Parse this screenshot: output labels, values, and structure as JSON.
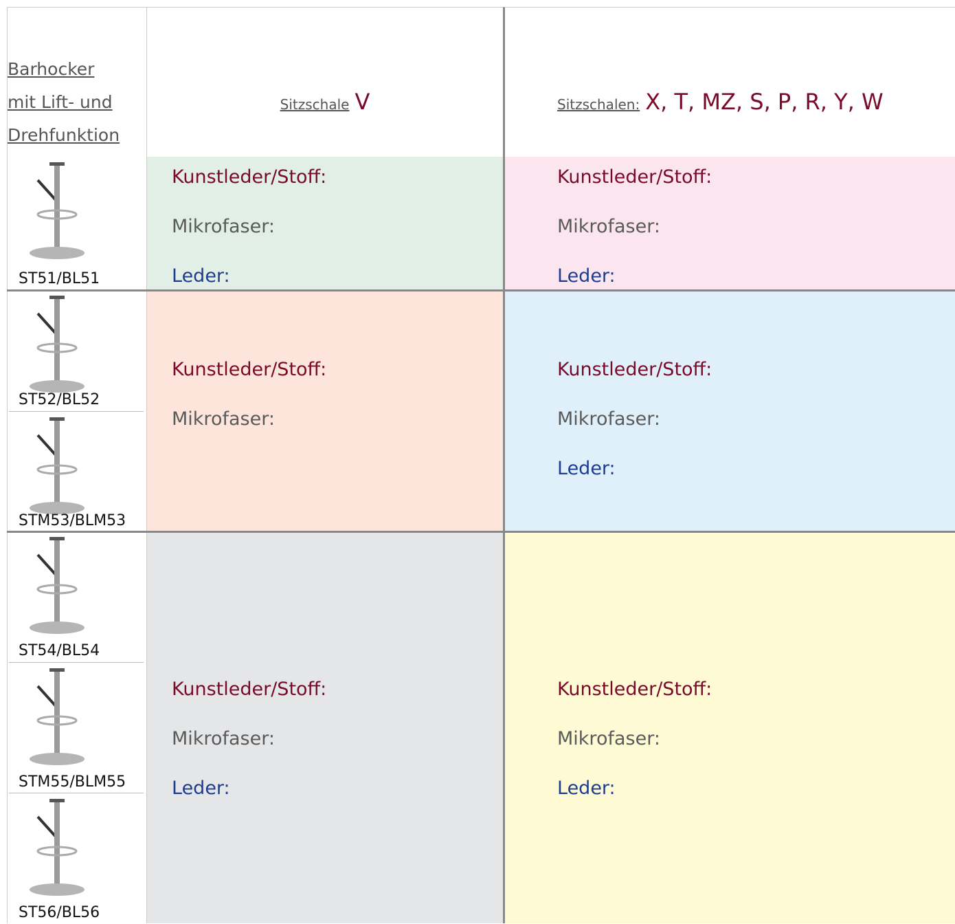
{
  "header": {
    "title_lines": [
      "Barhocker",
      "mit Lift- und",
      "Drehfunktion"
    ],
    "col2_label": "Sitzschale",
    "col2_value": "V",
    "col3_label": "Sitzschalen:",
    "col3_value": "X, T, MZ, S, P, R, Y, W"
  },
  "rows": [
    {
      "products": [
        "ST51/BL51"
      ],
      "left": [
        "Kunstleder/Stoff:",
        "Mikrofaser:",
        "Leder:"
      ],
      "right": [
        "Kunstleder/Stoff:",
        "Mikrofaser:",
        "Leder:"
      ]
    },
    {
      "products": [
        "ST52/BL52",
        "STM53/BLM53"
      ],
      "left": [
        "Kunstleder/Stoff:",
        "Mikrofaser:"
      ],
      "right": [
        "Kunstleder/Stoff:",
        "Mikrofaser:",
        "Leder:"
      ]
    },
    {
      "products": [
        "ST54/BL54",
        "STM55/BLM55",
        "ST56/BL56"
      ],
      "left": [
        "Kunstleder/Stoff:",
        "Mikrofaser:",
        "Leder:"
      ],
      "right": [
        "Kunstleder/Stoff:",
        "Mikrofaser:",
        "Leder:"
      ]
    }
  ]
}
